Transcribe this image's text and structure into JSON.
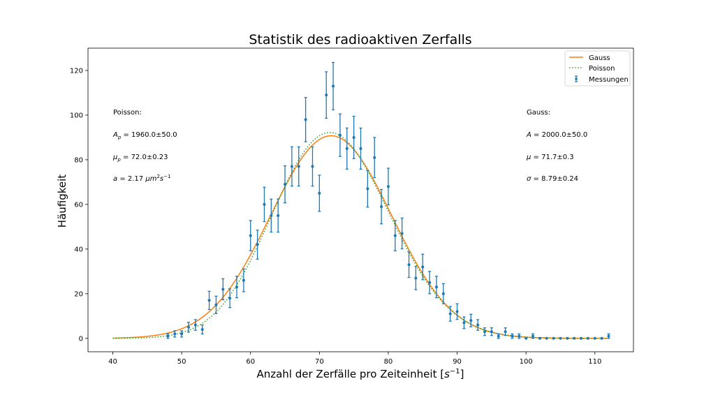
{
  "chart_data": {
    "type": "scatter",
    "title": "Statistik des radioaktiven Zerfalls",
    "xlabel": "Anzahl der Zerfälle pro Zeiteinheit [s⁻¹]",
    "ylabel": "Häufigkeit",
    "xlim": [
      36.4,
      115.6
    ],
    "ylim": [
      -6,
      130
    ],
    "xticks": [
      40,
      50,
      60,
      70,
      80,
      90,
      100,
      110
    ],
    "yticks": [
      0,
      20,
      40,
      60,
      80,
      100,
      120
    ],
    "grid": false,
    "legend_position": "top-right",
    "legend": [
      {
        "label": "Gauss",
        "style": "line",
        "color": "#ff7f0e"
      },
      {
        "label": "Poisson",
        "style": "dotted",
        "color": "#2ca02c"
      },
      {
        "label": "Messungen",
        "style": "errorbar",
        "color": "#1f77b4"
      }
    ],
    "annotations_left": {
      "heading": "Poisson:",
      "a_p": "A_p = 1960.0±50.0",
      "mu_p": "μ_p = 72.0±0.23",
      "a": "a = 2.17 μm²s⁻¹"
    },
    "annotations_right": {
      "heading": "Gauss:",
      "a": "A = 2000.0±50.0",
      "mu": "μ = 71.7±0.3",
      "sigma": "σ = 8.79±0.24"
    },
    "gauss_fit": {
      "A": 2000.0,
      "mu": 71.7,
      "sigma": 8.79,
      "x_range": [
        40,
        112
      ]
    },
    "poisson_fit": {
      "A": 1960.0,
      "mu": 72.0,
      "x_range": [
        40,
        112
      ]
    },
    "series": [
      {
        "name": "Messungen",
        "type": "errorbar",
        "x": [
          48,
          49,
          50,
          51,
          52,
          53,
          54,
          55,
          56,
          57,
          58,
          59,
          60,
          61,
          62,
          63,
          64,
          65,
          66,
          67,
          68,
          69,
          70,
          71,
          72,
          73,
          74,
          75,
          76,
          77,
          78,
          79,
          80,
          81,
          82,
          83,
          84,
          85,
          86,
          87,
          88,
          89,
          90,
          91,
          92,
          93,
          94,
          95,
          96,
          97,
          98,
          99,
          100,
          101,
          102,
          103,
          104,
          105,
          106,
          107,
          108,
          109,
          110,
          111,
          112
        ],
        "y": [
          1,
          2,
          2,
          5,
          6,
          4,
          17,
          15,
          22,
          18,
          23,
          26,
          46,
          42,
          60,
          55,
          55,
          69,
          77,
          77,
          98,
          77,
          65,
          109,
          113,
          91,
          85,
          90,
          85,
          67,
          81,
          59,
          68,
          46,
          47,
          33,
          27,
          32,
          25,
          23,
          20,
          11,
          12,
          7,
          8,
          6,
          3,
          3,
          1,
          3,
          1,
          1,
          0,
          1,
          0,
          0,
          0,
          0,
          0,
          0,
          0,
          0,
          0,
          0,
          1
        ],
        "yerr": [
          1,
          1.4,
          1.4,
          2.2,
          2.4,
          2,
          4.1,
          3.9,
          4.7,
          4.2,
          4.8,
          5.1,
          6.8,
          6.5,
          7.7,
          7.4,
          7.4,
          8.3,
          8.8,
          8.8,
          9.9,
          8.8,
          8.1,
          10.4,
          10.6,
          9.5,
          9.2,
          9.5,
          9.2,
          8.2,
          9,
          7.7,
          8.2,
          6.8,
          6.9,
          5.7,
          5.2,
          5.7,
          5,
          4.8,
          4.5,
          3.3,
          3.5,
          2.6,
          2.8,
          2.4,
          1.7,
          1.7,
          1,
          1.7,
          1,
          1,
          0,
          1,
          0,
          0,
          0,
          0,
          0,
          0,
          0,
          0,
          0,
          0,
          1
        ]
      }
    ]
  }
}
